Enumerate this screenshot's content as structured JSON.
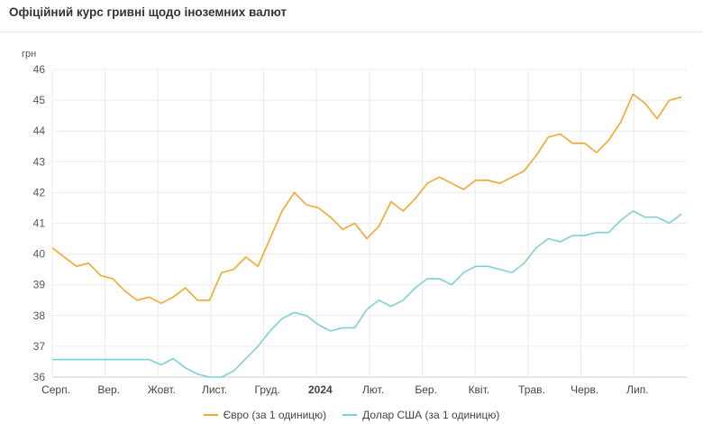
{
  "header": {
    "title": "Офіційний курс гривні щодо іноземних валют"
  },
  "chart_data": {
    "type": "line",
    "title": "Офіційний курс гривні щодо іноземних валют",
    "ylabel": "грн",
    "xlabel": "",
    "ylim": [
      36,
      46
    ],
    "yticks": [
      36,
      37,
      38,
      39,
      40,
      41,
      42,
      43,
      44,
      45,
      46
    ],
    "grid": true,
    "legend_position": "bottom",
    "x_tick_labels": [
      "Серп.",
      "Вер.",
      "Жовт.",
      "Лист.",
      "Груд.",
      "2024",
      "Лют.",
      "Бер.",
      "Квіт.",
      "Трав.",
      "Черв.",
      "Лип."
    ],
    "x": [
      "2023-08-01",
      "2023-08-08",
      "2023-08-15",
      "2023-08-22",
      "2023-08-29",
      "2023-09-05",
      "2023-09-12",
      "2023-09-19",
      "2023-09-26",
      "2023-10-03",
      "2023-10-10",
      "2023-10-17",
      "2023-10-24",
      "2023-10-31",
      "2023-11-07",
      "2023-11-14",
      "2023-11-21",
      "2023-11-28",
      "2023-12-05",
      "2023-12-12",
      "2023-12-19",
      "2023-12-26",
      "2024-01-02",
      "2024-01-09",
      "2024-01-16",
      "2024-01-23",
      "2024-01-30",
      "2024-02-06",
      "2024-02-13",
      "2024-02-20",
      "2024-02-27",
      "2024-03-05",
      "2024-03-12",
      "2024-03-19",
      "2024-03-26",
      "2024-04-02",
      "2024-04-09",
      "2024-04-16",
      "2024-04-23",
      "2024-04-30",
      "2024-05-07",
      "2024-05-14",
      "2024-05-21",
      "2024-05-28",
      "2024-06-04",
      "2024-06-11",
      "2024-06-18",
      "2024-06-25",
      "2024-07-02",
      "2024-07-09",
      "2024-07-16",
      "2024-07-23",
      "2024-07-30"
    ],
    "series": [
      {
        "name": "Євро (за 1 одиницю)",
        "color": "#f0a830",
        "values": [
          40.2,
          39.9,
          39.6,
          39.7,
          39.3,
          39.2,
          38.8,
          38.5,
          38.6,
          38.4,
          38.6,
          38.9,
          38.5,
          38.5,
          39.4,
          39.5,
          39.9,
          39.6,
          40.5,
          41.4,
          42.0,
          41.6,
          41.5,
          41.2,
          40.8,
          41.0,
          40.5,
          40.9,
          41.7,
          41.4,
          41.8,
          42.3,
          42.5,
          42.3,
          42.1,
          42.4,
          42.4,
          42.3,
          42.5,
          42.7,
          43.2,
          43.8,
          43.9,
          43.6,
          43.6,
          43.3,
          43.7,
          44.3,
          45.2,
          44.9,
          44.4,
          45.0,
          45.1
        ]
      },
      {
        "name": "Долар США (за 1 одиницю)",
        "color": "#7ecfd6",
        "values": [
          36.57,
          36.57,
          36.57,
          36.57,
          36.57,
          36.57,
          36.57,
          36.57,
          36.57,
          36.4,
          36.6,
          36.3,
          36.1,
          36.0,
          36.0,
          36.2,
          36.6,
          37.0,
          37.5,
          37.9,
          38.1,
          38.0,
          37.7,
          37.5,
          37.6,
          37.6,
          38.2,
          38.5,
          38.3,
          38.5,
          38.9,
          39.2,
          39.2,
          39.0,
          39.4,
          39.6,
          39.6,
          39.5,
          39.4,
          39.7,
          40.2,
          40.5,
          40.4,
          40.6,
          40.6,
          40.7,
          40.7,
          41.1,
          41.4,
          41.2,
          41.2,
          41.0,
          41.3
        ]
      }
    ]
  }
}
